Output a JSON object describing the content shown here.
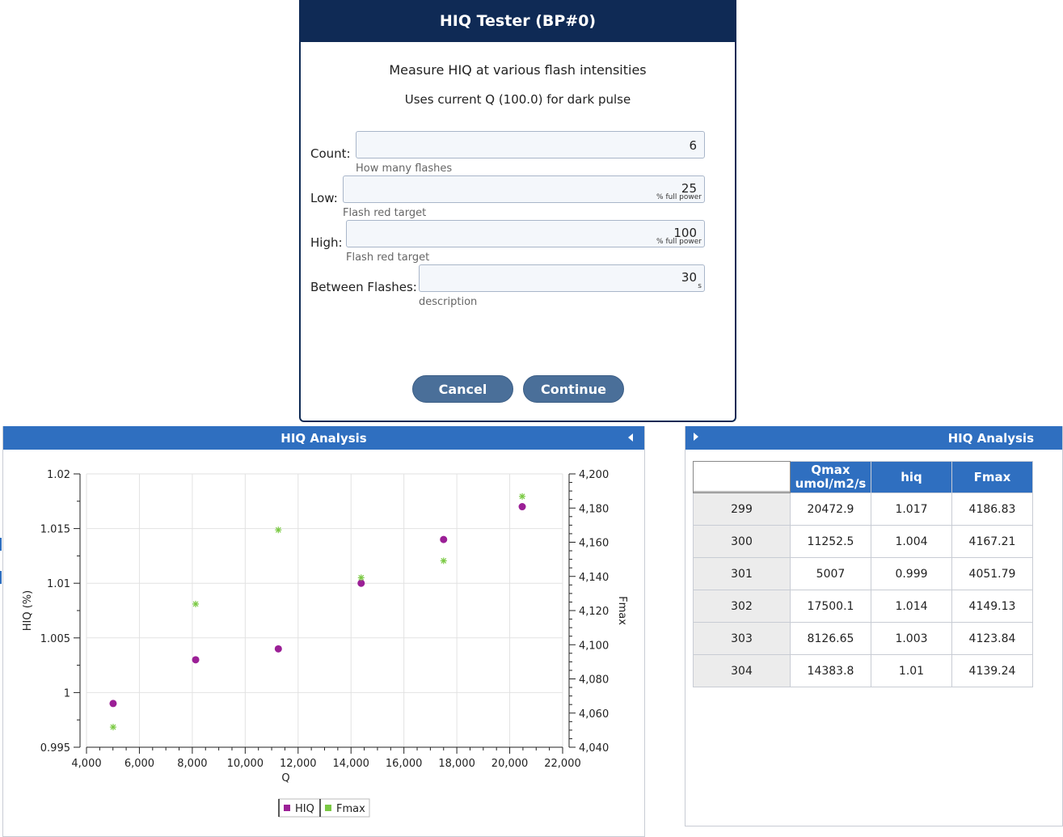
{
  "dialog": {
    "title": "HIQ Tester (BP#0)",
    "line1": "Measure HIQ at various flash intensities",
    "line2": "Uses current Q (100.0) for dark pulse",
    "fields": [
      {
        "label": "Count:",
        "value": "6",
        "unit": "",
        "help": "How many flashes"
      },
      {
        "label": "Low:",
        "value": "25",
        "unit": "% full power",
        "help": "Flash red target"
      },
      {
        "label": "High:",
        "value": "100",
        "unit": "% full power",
        "help": "Flash red target"
      },
      {
        "label": "Between Flashes:",
        "value": "30",
        "unit": "s",
        "help": "description"
      }
    ],
    "cancel_label": "Cancel",
    "continue_label": "Continue"
  },
  "chart_panel": {
    "title": "HIQ Analysis"
  },
  "table_panel": {
    "title": "HIQ Analysis",
    "columns": [
      "",
      "Qmax umol/m2/s",
      "hiq",
      "Fmax"
    ],
    "rows": [
      [
        "299",
        "20472.9",
        "1.017",
        "4186.83"
      ],
      [
        "300",
        "11252.5",
        "1.004",
        "4167.21"
      ],
      [
        "301",
        "5007",
        "0.999",
        "4051.79"
      ],
      [
        "302",
        "17500.1",
        "1.014",
        "4149.13"
      ],
      [
        "303",
        "8126.65",
        "1.003",
        "4123.84"
      ],
      [
        "304",
        "14383.8",
        "1.01",
        "4139.24"
      ]
    ]
  },
  "chart_data": {
    "type": "scatter",
    "xlabel": "Q",
    "ylabel": "HIQ (%)",
    "y2label": "Fmax",
    "xlim": [
      4000,
      22000
    ],
    "ylim": [
      0.995,
      1.02
    ],
    "y2lim": [
      4040,
      4200
    ],
    "xticks": [
      4000,
      6000,
      8000,
      10000,
      12000,
      14000,
      16000,
      18000,
      20000,
      22000
    ],
    "xtick_labels": [
      "4,000",
      "6,000",
      "8,000",
      "10,000",
      "12,000",
      "14,000",
      "16,000",
      "18,000",
      "20,000",
      "22,000"
    ],
    "yticks": [
      0.995,
      1,
      1.005,
      1.01,
      1.015,
      1.02
    ],
    "ytick_labels": [
      "0.995",
      "1",
      "1.005",
      "1.01",
      "1.015",
      "1.02"
    ],
    "y2ticks": [
      4040,
      4060,
      4080,
      4100,
      4120,
      4140,
      4160,
      4180,
      4200
    ],
    "y2tick_labels": [
      "4,040",
      "4,060",
      "4,080",
      "4,100",
      "4,120",
      "4,140",
      "4,160",
      "4,180",
      "4,200"
    ],
    "grid": true,
    "legend_position": "bottom",
    "series": [
      {
        "name": "HIQ",
        "axis": "left",
        "color": "#9b1f96",
        "marker": "circle",
        "x": [
          20472.9,
          11252.5,
          5007,
          17500.1,
          8126.65,
          14383.8
        ],
        "y": [
          1.017,
          1.004,
          0.999,
          1.014,
          1.003,
          1.01
        ]
      },
      {
        "name": "Fmax",
        "axis": "right",
        "color": "#7ac943",
        "marker": "asterisk",
        "x": [
          20472.9,
          11252.5,
          5007,
          17500.1,
          8126.65,
          14383.8
        ],
        "y": [
          4186.83,
          4167.21,
          4051.79,
          4149.13,
          4123.84,
          4139.24
        ]
      }
    ]
  }
}
